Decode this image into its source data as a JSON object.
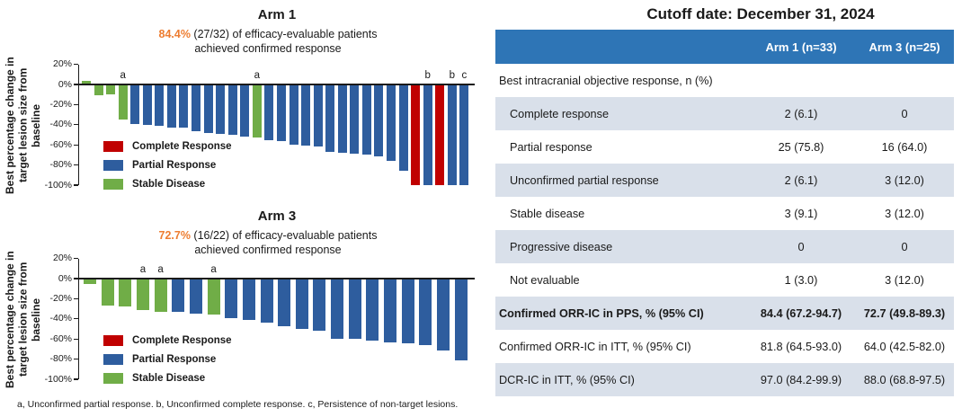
{
  "colors": {
    "complete_response": "#C00000",
    "partial_response": "#2E5D9E",
    "stable_disease": "#70AD47",
    "highlight_orange": "#ED7D31",
    "axis": "#1a1a1a",
    "table_header_bg": "#2E75B6",
    "table_header_text": "#FFFFFF",
    "table_shaded_row_bg": "#D9E0EA"
  },
  "legend": [
    {
      "label": "Complete Response",
      "type": "complete_response"
    },
    {
      "label": "Partial Response",
      "type": "partial_response"
    },
    {
      "label": "Stable Disease",
      "type": "stable_disease"
    }
  ],
  "footnote": "a, Unconfirmed partial response. b, Unconfirmed complete response. c, Persistence of non-target lesions.",
  "chart_data": [
    {
      "type": "bar",
      "variant": "waterfall",
      "title": "Arm 1",
      "subtitle_highlight": "84.4%",
      "subtitle_rest": " (27/32) of efficacy-evaluable patients",
      "subtitle_line2": "achieved confirmed response",
      "ylabel_lines": [
        "Best percentage change in",
        "target lesion size from",
        "baseline"
      ],
      "ylabel": "Best percentage change in target lesion size from baseline",
      "ylim": [
        -100,
        20
      ],
      "yticks": [
        "20%",
        "0%",
        "-20%",
        "-40%",
        "-60%",
        "-80%",
        "-100%"
      ],
      "grid": false,
      "legend_position": "inside-lower-left",
      "values": [
        4,
        -11,
        -10,
        -35,
        -39,
        -40,
        -41,
        -43,
        -43,
        -46,
        -48,
        -49,
        -50,
        -52,
        -53,
        -55,
        -56,
        -60,
        -61,
        -62,
        -67,
        -68,
        -69,
        -70,
        -71,
        -76,
        -86,
        -100,
        -100,
        -100,
        -100,
        -100
      ],
      "bar_types": [
        "stable_disease",
        "stable_disease",
        "stable_disease",
        "stable_disease",
        "partial_response",
        "partial_response",
        "partial_response",
        "partial_response",
        "partial_response",
        "partial_response",
        "partial_response",
        "partial_response",
        "partial_response",
        "partial_response",
        "stable_disease",
        "partial_response",
        "partial_response",
        "partial_response",
        "partial_response",
        "partial_response",
        "partial_response",
        "partial_response",
        "partial_response",
        "partial_response",
        "partial_response",
        "partial_response",
        "partial_response",
        "complete_response",
        "partial_response",
        "complete_response",
        "partial_response",
        "partial_response"
      ],
      "bar_labels": [
        "",
        "",
        "",
        "a",
        "",
        "",
        "",
        "",
        "",
        "",
        "",
        "",
        "",
        "",
        "a",
        "",
        "",
        "",
        "",
        "",
        "",
        "",
        "",
        "",
        "",
        "",
        "",
        "",
        "b",
        "",
        "b",
        "c"
      ]
    },
    {
      "type": "bar",
      "variant": "waterfall",
      "title": "Arm 3",
      "subtitle_highlight": "72.7%",
      "subtitle_rest": " (16/22) of efficacy-evaluable patients",
      "subtitle_line2": "achieved confirmed response",
      "ylabel_lines": [
        "Best percentage change in",
        "target lesion size from",
        "baseline"
      ],
      "ylabel": "Best percentage change in target lesion size from baseline",
      "ylim": [
        -100,
        20
      ],
      "yticks": [
        "20%",
        "0%",
        "-20%",
        "-40%",
        "-60%",
        "-80%",
        "-100%"
      ],
      "grid": false,
      "legend_position": "inside-lower-left",
      "values": [
        -5,
        -27,
        -28,
        -31,
        -33,
        -33,
        -35,
        -36,
        -39,
        -41,
        -44,
        -47,
        -50,
        -52,
        -60,
        -60,
        -62,
        -63,
        -64,
        -66,
        -71,
        -81
      ],
      "bar_types": [
        "stable_disease",
        "stable_disease",
        "stable_disease",
        "stable_disease",
        "stable_disease",
        "partial_response",
        "partial_response",
        "stable_disease",
        "partial_response",
        "partial_response",
        "partial_response",
        "partial_response",
        "partial_response",
        "partial_response",
        "partial_response",
        "partial_response",
        "partial_response",
        "partial_response",
        "partial_response",
        "partial_response",
        "partial_response",
        "partial_response"
      ],
      "bar_labels": [
        "",
        "",
        "",
        "a",
        "a",
        "",
        "",
        "a",
        "",
        "",
        "",
        "",
        "",
        "",
        "",
        "",
        "",
        "",
        "",
        "",
        "",
        ""
      ]
    }
  ],
  "table": {
    "title": "Cutoff date: December 31, 2024",
    "columns": [
      "",
      "Arm 1 (n=33)",
      "Arm 3 (n=25)"
    ],
    "rows": [
      {
        "label": "Best intracranial objective response, n (%)",
        "arm1": "",
        "arm3": "",
        "indent": false,
        "bold": false,
        "shaded": false
      },
      {
        "label": "Complete response",
        "arm1": "2 (6.1)",
        "arm3": "0",
        "indent": true,
        "bold": false,
        "shaded": true
      },
      {
        "label": "Partial response",
        "arm1": "25 (75.8)",
        "arm3": "16 (64.0)",
        "indent": true,
        "bold": false,
        "shaded": false
      },
      {
        "label": "Unconfirmed partial response",
        "arm1": "2 (6.1)",
        "arm3": "3 (12.0)",
        "indent": true,
        "bold": false,
        "shaded": true
      },
      {
        "label": "Stable disease",
        "arm1": "3 (9.1)",
        "arm3": "3 (12.0)",
        "indent": true,
        "bold": false,
        "shaded": false
      },
      {
        "label": "Progressive disease",
        "arm1": "0",
        "arm3": "0",
        "indent": true,
        "bold": false,
        "shaded": true
      },
      {
        "label": "Not evaluable",
        "arm1": "1 (3.0)",
        "arm3": "3 (12.0)",
        "indent": true,
        "bold": false,
        "shaded": false
      },
      {
        "label": "Confirmed ORR-IC in PPS, % (95% CI)",
        "arm1": "84.4 (67.2-94.7)",
        "arm3": "72.7 (49.8-89.3)",
        "indent": false,
        "bold": true,
        "shaded": true
      },
      {
        "label": "Confirmed ORR-IC in ITT, % (95% CI)",
        "arm1": "81.8 (64.5-93.0)",
        "arm3": "64.0 (42.5-82.0)",
        "indent": false,
        "bold": false,
        "shaded": false
      },
      {
        "label": "DCR-IC in ITT, % (95% CI)",
        "arm1": "97.0 (84.2-99.9)",
        "arm3": "88.0 (68.8-97.5)",
        "indent": false,
        "bold": false,
        "shaded": true
      }
    ]
  }
}
